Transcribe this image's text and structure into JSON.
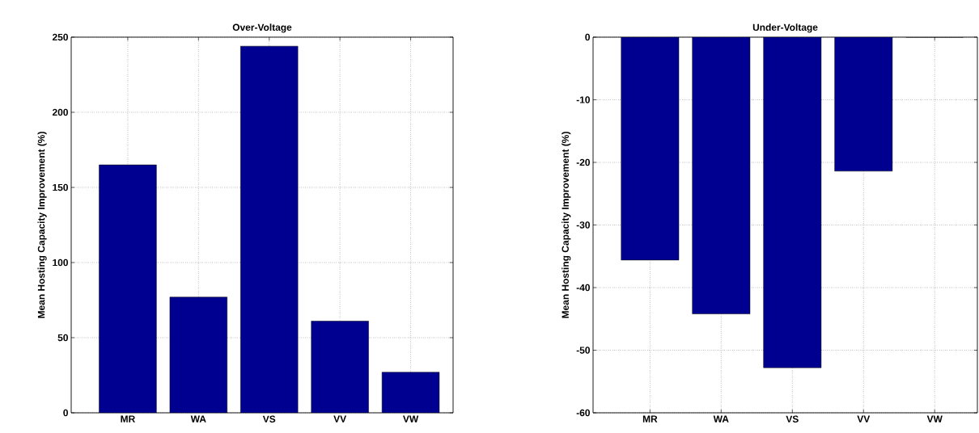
{
  "chart_data": [
    {
      "type": "bar",
      "title": "Over-Voltage",
      "ylabel": "Mean Hosting Capacity Improvement (%)",
      "categories": [
        "MR",
        "WA",
        "VS",
        "VV",
        "VW"
      ],
      "values": [
        165,
        77,
        244,
        61,
        27
      ],
      "color": "#000090",
      "ylim": [
        0,
        250
      ],
      "yticks": [
        0,
        50,
        100,
        150,
        200,
        250
      ],
      "grid": true
    },
    {
      "type": "bar",
      "title": "Under-Voltage",
      "ylabel": "Mean Hosting Capacity Improvement (%)",
      "categories": [
        "MR",
        "WA",
        "VS",
        "VV",
        "VW"
      ],
      "values": [
        -35.6,
        -44.2,
        -52.8,
        -21.4,
        0
      ],
      "color": "#000090",
      "ylim": [
        -60,
        0
      ],
      "yticks": [
        -60,
        -50,
        -40,
        -30,
        -20,
        -10,
        0
      ],
      "grid": true
    }
  ]
}
